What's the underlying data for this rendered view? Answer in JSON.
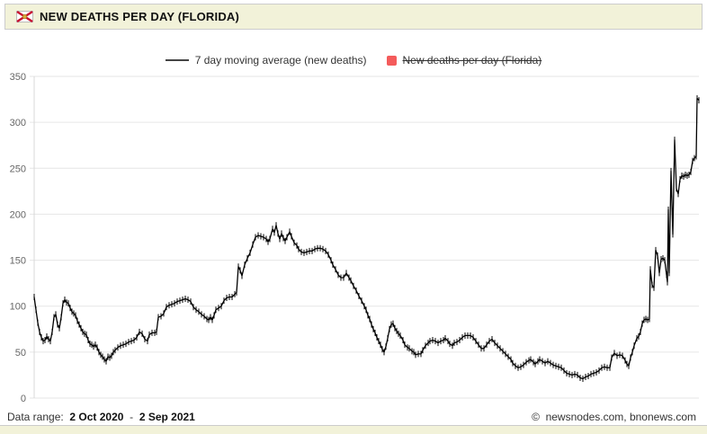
{
  "header": {
    "title": "NEW DEATHS PER DAY (FLORIDA)",
    "icon": "florida-flag",
    "flag_colors": {
      "field": "#ffffff",
      "saltire": "#c8102e",
      "seal": "#d9a93a",
      "border": "#bbbbbb"
    }
  },
  "legend": [
    {
      "label": "7 day moving average (new deaths)",
      "marker": "line",
      "color": "#444444",
      "active": true
    },
    {
      "label": "New deaths per day (Florida)",
      "marker": "square",
      "color": "#f45b5b",
      "active": false
    }
  ],
  "footer": {
    "data_range_label": "Data range:",
    "start_date": "2 Oct 2020",
    "separator": "-",
    "end_date": "2 Sep 2021",
    "copyright": "©",
    "credits": "newsnodes.com, bnonews.com"
  },
  "chart_data": {
    "type": "line",
    "title": "NEW DEATHS PER DAY (FLORIDA)",
    "xlabel": "",
    "ylabel": "",
    "x_range_dates": [
      "2 Oct 2020",
      "2 Sep 2021"
    ],
    "x_unit": "plot pixel (38 = 2 Oct 2020, 777 = 2 Sep 2021, ~2.2 px/day)",
    "ylim": [
      0,
      350
    ],
    "yticks": [
      0,
      50,
      100,
      150,
      200,
      250,
      300,
      350
    ],
    "grid": true,
    "grid_color": "#e6e6e6",
    "axis_label_color": "#666666",
    "legend_position": "top-center",
    "marker": "vertical-tick",
    "series": [
      {
        "name": "7 day moving average (new deaths)",
        "color": "#000000",
        "points": [
          [
            38,
            110
          ],
          [
            40,
            96
          ],
          [
            42,
            82
          ],
          [
            44,
            72
          ],
          [
            46,
            66
          ],
          [
            48,
            62
          ],
          [
            50,
            63
          ],
          [
            52,
            67
          ],
          [
            54,
            64
          ],
          [
            56,
            62
          ],
          [
            58,
            72
          ],
          [
            60,
            88
          ],
          [
            62,
            91
          ],
          [
            64,
            80
          ],
          [
            66,
            76
          ],
          [
            68,
            88
          ],
          [
            70,
            103
          ],
          [
            72,
            107
          ],
          [
            74,
            104
          ],
          [
            76,
            103
          ],
          [
            78,
            98
          ],
          [
            80,
            94
          ],
          [
            82,
            92
          ],
          [
            84,
            90
          ],
          [
            86,
            84
          ],
          [
            88,
            80
          ],
          [
            90,
            76
          ],
          [
            92,
            72
          ],
          [
            94,
            70
          ],
          [
            96,
            69
          ],
          [
            98,
            63
          ],
          [
            100,
            59
          ],
          [
            102,
            58
          ],
          [
            104,
            56
          ],
          [
            106,
            58
          ],
          [
            108,
            55
          ],
          [
            110,
            50
          ],
          [
            112,
            47
          ],
          [
            114,
            45
          ],
          [
            116,
            42
          ],
          [
            118,
            40
          ],
          [
            120,
            45
          ],
          [
            122,
            44
          ],
          [
            124,
            46
          ],
          [
            126,
            50
          ],
          [
            128,
            52
          ],
          [
            131,
            55
          ],
          [
            134,
            57
          ],
          [
            137,
            58
          ],
          [
            140,
            59
          ],
          [
            143,
            61
          ],
          [
            146,
            62
          ],
          [
            149,
            63
          ],
          [
            152,
            66
          ],
          [
            155,
            72
          ],
          [
            158,
            70
          ],
          [
            161,
            64
          ],
          [
            164,
            62
          ],
          [
            166,
            69
          ],
          [
            169,
            71
          ],
          [
            172,
            71
          ],
          [
            174,
            72
          ],
          [
            176,
            88
          ],
          [
            179,
            89
          ],
          [
            182,
            92
          ],
          [
            185,
            99
          ],
          [
            188,
            101
          ],
          [
            191,
            102
          ],
          [
            194,
            103
          ],
          [
            197,
            105
          ],
          [
            200,
            106
          ],
          [
            203,
            107
          ],
          [
            206,
            108
          ],
          [
            209,
            107
          ],
          [
            212,
            105
          ],
          [
            215,
            99
          ],
          [
            218,
            96
          ],
          [
            221,
            94
          ],
          [
            224,
            91
          ],
          [
            227,
            89
          ],
          [
            230,
            86
          ],
          [
            232,
            85
          ],
          [
            234,
            88
          ],
          [
            236,
            85
          ],
          [
            238,
            90
          ],
          [
            240,
            96
          ],
          [
            243,
            98
          ],
          [
            246,
            100
          ],
          [
            249,
            106
          ],
          [
            252,
            109
          ],
          [
            255,
            110
          ],
          [
            258,
            110
          ],
          [
            261,
            113
          ],
          [
            263,
            115
          ],
          [
            265,
            143
          ],
          [
            267,
            139
          ],
          [
            269,
            133
          ],
          [
            272,
            145
          ],
          [
            275,
            152
          ],
          [
            278,
            158
          ],
          [
            281,
            167
          ],
          [
            284,
            175
          ],
          [
            287,
            177
          ],
          [
            290,
            176
          ],
          [
            293,
            175
          ],
          [
            296,
            173
          ],
          [
            298,
            170
          ],
          [
            300,
            173
          ],
          [
            303,
            184
          ],
          [
            305,
            180
          ],
          [
            307,
            188
          ],
          [
            309,
            179
          ],
          [
            311,
            173
          ],
          [
            313,
            179
          ],
          [
            315,
            174
          ],
          [
            317,
            171
          ],
          [
            319,
            175
          ],
          [
            322,
            181
          ],
          [
            324,
            176
          ],
          [
            327,
            169
          ],
          [
            330,
            166
          ],
          [
            332,
            162
          ],
          [
            335,
            159
          ],
          [
            338,
            158
          ],
          [
            341,
            159
          ],
          [
            344,
            160
          ],
          [
            347,
            160
          ],
          [
            350,
            162
          ],
          [
            353,
            163
          ],
          [
            356,
            163
          ],
          [
            359,
            162
          ],
          [
            362,
            160
          ],
          [
            365,
            156
          ],
          [
            368,
            150
          ],
          [
            370,
            145
          ],
          [
            373,
            140
          ],
          [
            376,
            134
          ],
          [
            379,
            131
          ],
          [
            382,
            131
          ],
          [
            385,
            136
          ],
          [
            388,
            131
          ],
          [
            390,
            128
          ],
          [
            393,
            122
          ],
          [
            396,
            117
          ],
          [
            399,
            111
          ],
          [
            402,
            106
          ],
          [
            405,
            100
          ],
          [
            407,
            96
          ],
          [
            409,
            90
          ],
          [
            411,
            86
          ],
          [
            413,
            80
          ],
          [
            415,
            75
          ],
          [
            417,
            71
          ],
          [
            419,
            66
          ],
          [
            421,
            62
          ],
          [
            423,
            58
          ],
          [
            425,
            53
          ],
          [
            427,
            50
          ],
          [
            429,
            56
          ],
          [
            431,
            65
          ],
          [
            433,
            75
          ],
          [
            435,
            80
          ],
          [
            437,
            81
          ],
          [
            439,
            76
          ],
          [
            441,
            73
          ],
          [
            443,
            70
          ],
          [
            445,
            68
          ],
          [
            448,
            63
          ],
          [
            450,
            58
          ],
          [
            453,
            55
          ],
          [
            455,
            54
          ],
          [
            458,
            51
          ],
          [
            460,
            50
          ],
          [
            462,
            47
          ],
          [
            465,
            48
          ],
          [
            468,
            48
          ],
          [
            470,
            52
          ],
          [
            473,
            57
          ],
          [
            476,
            60
          ],
          [
            478,
            62
          ],
          [
            481,
            63
          ],
          [
            484,
            62
          ],
          [
            487,
            60
          ],
          [
            490,
            62
          ],
          [
            493,
            63
          ],
          [
            495,
            65
          ],
          [
            498,
            62
          ],
          [
            500,
            59
          ],
          [
            503,
            57
          ],
          [
            505,
            60
          ],
          [
            508,
            61
          ],
          [
            511,
            63
          ],
          [
            514,
            66
          ],
          [
            517,
            68
          ],
          [
            520,
            68
          ],
          [
            523,
            68
          ],
          [
            526,
            66
          ],
          [
            529,
            62
          ],
          [
            532,
            58
          ],
          [
            535,
            54
          ],
          [
            538,
            54
          ],
          [
            541,
            58
          ],
          [
            544,
            62
          ],
          [
            547,
            64
          ],
          [
            550,
            60
          ],
          [
            553,
            57
          ],
          [
            556,
            54
          ],
          [
            559,
            51
          ],
          [
            562,
            48
          ],
          [
            565,
            45
          ],
          [
            568,
            42
          ],
          [
            570,
            38
          ],
          [
            573,
            35
          ],
          [
            576,
            33
          ],
          [
            579,
            34
          ],
          [
            582,
            36
          ],
          [
            585,
            39
          ],
          [
            588,
            41
          ],
          [
            590,
            42
          ],
          [
            593,
            39
          ],
          [
            595,
            37
          ],
          [
            598,
            40
          ],
          [
            600,
            42
          ],
          [
            603,
            40
          ],
          [
            606,
            38
          ],
          [
            609,
            40
          ],
          [
            612,
            38
          ],
          [
            615,
            36
          ],
          [
            618,
            35
          ],
          [
            621,
            34
          ],
          [
            624,
            33
          ],
          [
            627,
            30
          ],
          [
            630,
            27
          ],
          [
            633,
            26
          ],
          [
            636,
            25
          ],
          [
            639,
            26
          ],
          [
            642,
            25
          ],
          [
            645,
            22
          ],
          [
            648,
            21
          ],
          [
            651,
            23
          ],
          [
            654,
            24
          ],
          [
            657,
            26
          ],
          [
            660,
            27
          ],
          [
            663,
            28
          ],
          [
            666,
            30
          ],
          [
            669,
            33
          ],
          [
            672,
            34
          ],
          [
            675,
            33
          ],
          [
            678,
            33
          ],
          [
            680,
            44
          ],
          [
            683,
            49
          ],
          [
            686,
            46
          ],
          [
            689,
            47
          ],
          [
            692,
            46
          ],
          [
            695,
            41
          ],
          [
            697,
            37
          ],
          [
            699,
            35
          ],
          [
            701,
            44
          ],
          [
            703,
            50
          ],
          [
            705,
            57
          ],
          [
            708,
            65
          ],
          [
            710,
            67
          ],
          [
            712,
            72
          ],
          [
            714,
            81
          ],
          [
            716,
            85
          ],
          [
            718,
            86
          ],
          [
            720,
            85
          ],
          [
            722,
            86
          ],
          [
            723,
            140
          ],
          [
            725,
            123
          ],
          [
            727,
            120
          ],
          [
            729,
            161
          ],
          [
            731,
            155
          ],
          [
            733,
            136
          ],
          [
            735,
            151
          ],
          [
            737,
            152
          ],
          [
            739,
            150
          ],
          [
            741,
            134
          ],
          [
            742,
            126
          ],
          [
            743,
            205
          ],
          [
            744,
            136
          ],
          [
            746,
            247
          ],
          [
            748,
            178
          ],
          [
            750,
            281
          ],
          [
            752,
            228
          ],
          [
            754,
            222
          ],
          [
            756,
            238
          ],
          [
            758,
            242
          ],
          [
            760,
            241
          ],
          [
            762,
            243
          ],
          [
            764,
            242
          ],
          [
            766,
            243
          ],
          [
            768,
            246
          ],
          [
            770,
            258
          ],
          [
            772,
            261
          ],
          [
            774,
            263
          ],
          [
            775,
            326
          ],
          [
            777,
            324
          ]
        ]
      }
    ],
    "hidden_series": [
      {
        "name": "New deaths per day (Florida)",
        "color": "#f45b5b"
      }
    ]
  }
}
